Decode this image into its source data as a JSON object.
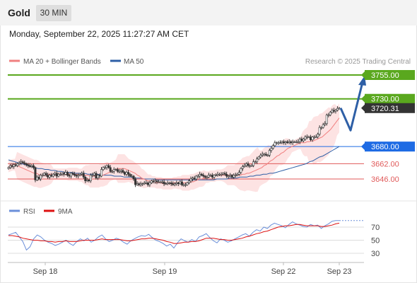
{
  "header": {
    "asset": "Gold",
    "timeframe": "30 MIN"
  },
  "timestamp": "Monday, September 22, 2025 11:27:27 AM CET",
  "legend": {
    "ma20": "MA 20 + Bollinger Bands",
    "ma50": "MA 50",
    "rsi": "RSI",
    "ma9": "9MA",
    "credit": "Research © 2025 Trading Central"
  },
  "colors": {
    "up_candle": "#ffffff",
    "down_candle": "#333333",
    "ma20": "#f07f7f",
    "ma50": "#2e5fa6",
    "bb_fill": "#fcdada",
    "resistance": "#5aa81e",
    "pivot": "#1e6be4",
    "support": "#e05a5a",
    "current": "#333333",
    "arrow": "#2e5fa6",
    "rsi": "#6b8fd9",
    "rsi_ma": "#dd1111"
  },
  "chart_data": [
    {
      "type": "line",
      "title": "",
      "xlabel": "",
      "ylabel": "",
      "x_ticks": [
        "Sep 18",
        "Sep 19",
        "Sep 22",
        "Sep 23"
      ],
      "ylim": [
        1626,
        3760
      ],
      "levels": [
        {
          "value": 3755.0,
          "label": "3755.00",
          "kind": "resistance"
        },
        {
          "value": 3730.0,
          "label": "3730.00",
          "kind": "resistance"
        },
        {
          "value": 3720.31,
          "label": "3720.31",
          "kind": "current"
        },
        {
          "value": 3680.0,
          "label": "3680.00",
          "kind": "pivot"
        },
        {
          "value": 3662.0,
          "label": "3662.00",
          "kind": "support"
        },
        {
          "value": 3646.0,
          "label": "3646.00",
          "kind": "support"
        }
      ],
      "price_close": [
        3658,
        3660,
        3659,
        3661,
        3660,
        3662,
        3663,
        3664,
        3663,
        3662,
        3661,
        3660,
        3659,
        3660,
        3658,
        3645,
        3648,
        3646,
        3650,
        3650,
        3652,
        3650,
        3648,
        3650,
        3649,
        3651,
        3652,
        3649,
        3651,
        3651,
        3652,
        3651,
        3653,
        3650,
        3649,
        3652,
        3651,
        3650,
        3649,
        3650,
        3651,
        3652,
        3648,
        3644,
        3645,
        3644,
        3650,
        3650,
        3652,
        3647,
        3650,
        3649,
        3656,
        3658,
        3658,
        3660,
        3658,
        3654,
        3654,
        3656,
        3656,
        3654,
        3654,
        3655,
        3653,
        3651,
        3653,
        3651,
        3649,
        3649,
        3646,
        3640,
        3641,
        3640,
        3641,
        3641,
        3642,
        3642,
        3640,
        3642,
        3644,
        3643,
        3644,
        3643,
        3643,
        3643,
        3643,
        3641,
        3641,
        3642,
        3642,
        3641,
        3640,
        3641,
        3642,
        3641,
        3643,
        3640,
        3640,
        3640,
        3642,
        3644,
        3646,
        3647,
        3646,
        3649,
        3649,
        3651,
        3650,
        3649,
        3648,
        3648,
        3650,
        3650,
        3648,
        3650,
        3650,
        3651,
        3651,
        3651,
        3652,
        3651,
        3649,
        3649,
        3650,
        3648,
        3650,
        3650,
        3651,
        3653,
        3657,
        3659,
        3660,
        3662,
        3660,
        3660,
        3660,
        3664,
        3664,
        3667,
        3669,
        3671,
        3672,
        3672,
        3671,
        3671,
        3676,
        3678,
        3681,
        3684,
        3684,
        3684,
        3684,
        3685,
        3684,
        3685,
        3684,
        3685,
        3684,
        3685,
        3685,
        3685,
        3685,
        3688,
        3686,
        3688,
        3690,
        3690,
        3690,
        3687,
        3690,
        3690,
        3690,
        3693,
        3700,
        3700,
        3703,
        3704,
        3713,
        3713,
        3716,
        3718,
        3717,
        3718,
        3720,
        3720.31
      ],
      "ma20": [
        3659,
        3660,
        3661,
        3661,
        3660,
        3659,
        3658,
        3657,
        3656,
        3655,
        3654,
        3653,
        3652,
        3652,
        3651,
        3650,
        3650,
        3650,
        3650,
        3651,
        3651,
        3651,
        3651,
        3651,
        3651,
        3651,
        3651,
        3651,
        3651,
        3651,
        3651,
        3651,
        3651,
        3650,
        3650,
        3650,
        3650,
        3650,
        3649,
        3649,
        3649,
        3649,
        3649,
        3650,
        3650,
        3651,
        3652,
        3653,
        3654,
        3655,
        3656,
        3657,
        3657,
        3657,
        3657,
        3656,
        3655,
        3654,
        3653,
        3652,
        3650,
        3649,
        3647,
        3646,
        3645,
        3644,
        3644,
        3643,
        3643,
        3642,
        3642,
        3642,
        3641,
        3641,
        3641,
        3641,
        3641,
        3642,
        3642,
        3642,
        3642,
        3642,
        3642,
        3642,
        3642,
        3643,
        3643,
        3644,
        3645,
        3646,
        3646,
        3647,
        3648,
        3648,
        3649,
        3649,
        3649,
        3650,
        3650,
        3650,
        3650,
        3650,
        3650,
        3650,
        3650,
        3650,
        3650,
        3650,
        3650,
        3651,
        3651,
        3652,
        3652,
        3653,
        3654,
        3655,
        3656,
        3657,
        3658,
        3660,
        3661,
        3663,
        3665,
        3666,
        3668,
        3670,
        3671,
        3673,
        3674,
        3676,
        3678,
        3679,
        3680,
        3681,
        3682,
        3683,
        3684,
        3684,
        3684,
        3685,
        3685,
        3686,
        3686,
        3687,
        3688,
        3689,
        3690,
        3692,
        3694,
        3696,
        3698,
        3701,
        3704,
        3707,
        3710
      ],
      "ma50": [
        3666,
        3665,
        3664,
        3663,
        3662,
        3661,
        3660,
        3659,
        3658,
        3657,
        3657,
        3656,
        3656,
        3655,
        3655,
        3654,
        3654,
        3653,
        3653,
        3653,
        3652,
        3652,
        3652,
        3652,
        3651,
        3651,
        3651,
        3651,
        3650,
        3650,
        3650,
        3650,
        3649,
        3649,
        3649,
        3648,
        3648,
        3648,
        3647,
        3647,
        3647,
        3646,
        3646,
        3646,
        3646,
        3645,
        3645,
        3645,
        3645,
        3645,
        3645,
        3645,
        3645,
        3645,
        3645,
        3645,
        3645,
        3645,
        3645,
        3645,
        3645,
        3645,
        3645,
        3646,
        3646,
        3646,
        3646,
        3647,
        3647,
        3647,
        3648,
        3648,
        3648,
        3649,
        3649,
        3650,
        3650,
        3651,
        3651,
        3652,
        3652,
        3653,
        3654,
        3655,
        3656,
        3657,
        3658,
        3659,
        3660,
        3661,
        3662,
        3664,
        3665,
        3667,
        3669,
        3670,
        3672,
        3674,
        3676,
        3678,
        3680
      ]
    },
    {
      "type": "line",
      "title": "",
      "ylim": [
        20,
        85
      ],
      "y_ticks": [
        70,
        50,
        30
      ],
      "series": [
        {
          "name": "RSI",
          "values": [
            58,
            60,
            62,
            55,
            48,
            35,
            40,
            52,
            58,
            55,
            50,
            47,
            45,
            42,
            44,
            47,
            50,
            45,
            42,
            48,
            52,
            49,
            53,
            47,
            50,
            55,
            58,
            52,
            48,
            50,
            53,
            51,
            47,
            44,
            49,
            52,
            55,
            57,
            56,
            59,
            54,
            50,
            48,
            45,
            41,
            44,
            38,
            46,
            52,
            49,
            47,
            51,
            48,
            55,
            57,
            60,
            54,
            49,
            46,
            52,
            50,
            47,
            49,
            52,
            55,
            58,
            60,
            56,
            62,
            66,
            64,
            70,
            68,
            73,
            76,
            74,
            72,
            69,
            74,
            78,
            75,
            73,
            71,
            70,
            74,
            72,
            73,
            68,
            72,
            75,
            79,
            80,
            80
          ]
        },
        {
          "name": "9MA",
          "values": [
            57,
            57,
            56,
            55,
            53,
            52,
            51,
            50,
            50,
            49,
            49,
            48,
            48,
            47,
            48,
            48,
            49,
            48,
            48,
            48,
            49,
            50,
            50,
            50,
            50,
            51,
            52,
            51,
            51,
            51,
            51,
            51,
            50,
            49,
            49,
            50,
            51,
            52,
            52,
            53,
            53,
            52,
            51,
            50,
            48,
            47,
            45,
            45,
            46,
            47,
            47,
            48,
            48,
            49,
            51,
            53,
            53,
            53,
            52,
            51,
            51,
            50,
            50,
            51,
            52,
            53,
            55,
            56,
            58,
            60,
            61,
            63,
            64,
            66,
            68,
            70,
            71,
            72,
            72,
            73,
            74,
            74,
            73,
            72,
            72,
            72,
            72,
            71,
            71,
            72,
            73,
            75,
            76
          ]
        }
      ]
    }
  ]
}
